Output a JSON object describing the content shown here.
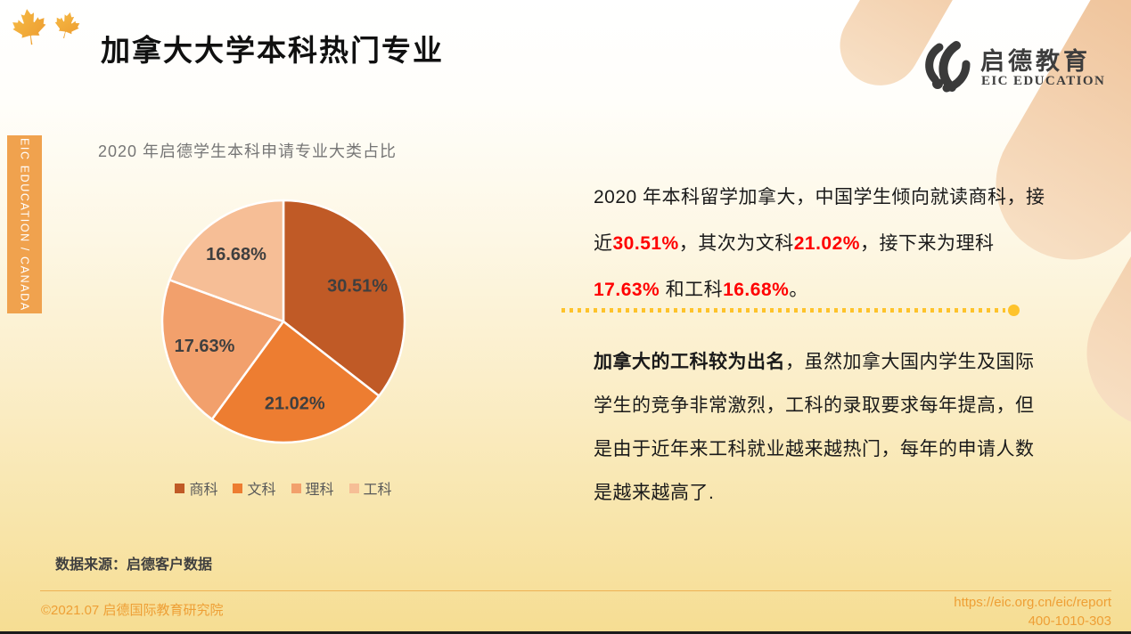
{
  "page": {
    "title": "加拿大大学本科热门专业"
  },
  "branding": {
    "logo_cn": "启德教育",
    "logo_en": "EIC EDUCATION",
    "sidebar_segments": [
      {
        "text": "EIC ",
        "bold": true
      },
      {
        "text": "EDUCATION / ",
        "bold": false
      },
      {
        "text": "CANADA",
        "bold": true
      }
    ]
  },
  "chart_data": {
    "type": "pie",
    "title": "2020 年启德学生本科申请专业大类占比",
    "categories": [
      "商科",
      "文科",
      "理科",
      "工科"
    ],
    "values": [
      30.51,
      21.02,
      17.63,
      16.68
    ],
    "labels": [
      "30.51%",
      "21.02%",
      "17.63%",
      "16.68%"
    ],
    "colors": [
      "#c05a26",
      "#ed7d31",
      "#f2a06c",
      "#f6be96"
    ],
    "start_angle_deg": 0,
    "direction": "clockwise",
    "legend_position": "bottom",
    "label_color": "#3f3f3f",
    "slice_border_color": "#ffffff"
  },
  "insights": {
    "p1_segments": [
      {
        "text": "2020 年本科留学加拿大，中国学生倾向就读商科，接近"
      },
      {
        "text": "30.51%",
        "red": true
      },
      {
        "text": "，其次为文科"
      },
      {
        "text": "21.02%",
        "red": true
      },
      {
        "text": "，接下来为理科"
      },
      {
        "text": "17.63%",
        "red": true
      },
      {
        "text": " 和工科"
      },
      {
        "text": "16.68%",
        "red": true
      },
      {
        "text": "。"
      }
    ],
    "p2_segments": [
      {
        "text": "加拿大的工科较为出名",
        "bold": true
      },
      {
        "text": "，虽然加拿大国内学生及国际学生的竞争非常激烈，工科的录取要求每年提高，但是由于近年来工科就业越来越热门，每年的申请人数是越来越高了."
      }
    ]
  },
  "source_note": "数据来源：启德客户数据",
  "footer": {
    "copyright": "©2021.07 启德国际教育研究院",
    "url": "https://eic.org.cn/eic/report",
    "phone": "400-1010-303"
  },
  "colors": {
    "accent_gold": "#fec32b",
    "ribbon_peach": "#efc298",
    "sidebar_orange": "#f0a24e",
    "footer_text_orange": "#ee9f35",
    "highlight_red": "#ff0000"
  }
}
